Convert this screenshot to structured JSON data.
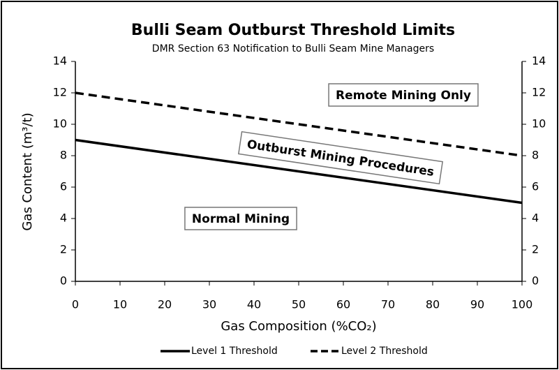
{
  "chart_data": {
    "type": "line",
    "title": "Bulli Seam Outburst Threshold Limits",
    "subtitle": "DMR Section 63 Notification to Bulli Seam Mine Managers",
    "x_label": "Gas Composition (%CO₂)",
    "y_label": "Gas Content (m³/t)",
    "x": [
      0,
      100
    ],
    "series": [
      {
        "name": "Level 1 Threshold",
        "color": "#000000",
        "dash": "solid",
        "values": [
          9,
          5
        ]
      },
      {
        "name": "Level 2 Threshold",
        "color": "#000000",
        "dash": "dashed",
        "values": [
          12,
          8
        ]
      }
    ],
    "xlim": [
      0,
      100
    ],
    "xticks": [
      0,
      10,
      20,
      30,
      40,
      50,
      60,
      70,
      80,
      90,
      100
    ],
    "ylim": [
      0,
      14
    ],
    "yticks": [
      0,
      2,
      4,
      6,
      8,
      10,
      12,
      14
    ],
    "y2lim": [
      0,
      14
    ],
    "y2ticks": [
      0,
      2,
      4,
      6,
      8,
      10,
      12,
      14
    ],
    "grid": false,
    "legend": "bottom",
    "annotations": [
      "Remote Mining Only",
      "Outburst Mining Procedures",
      "Normal Mining"
    ]
  }
}
